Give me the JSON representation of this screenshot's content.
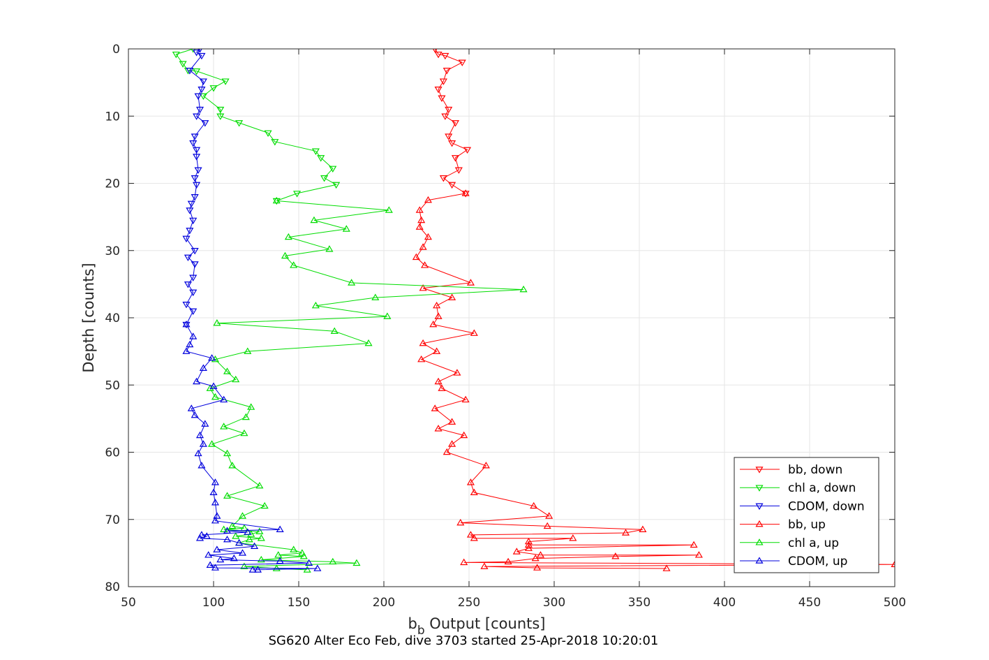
{
  "chart_data": {
    "type": "scatter",
    "title": "SG620 Alter Eco Feb, dive 3703 started 25-Apr-2018 10:20:01",
    "xlabel_main": "b",
    "xlabel_sub": "b",
    "xlabel_rest": " Output [counts]",
    "ylabel": "Depth [counts]",
    "xlim": [
      50,
      500
    ],
    "ylim": [
      0,
      80
    ],
    "y_reversed": true,
    "x_ticks": [
      "50",
      "100",
      "150",
      "200",
      "250",
      "300",
      "350",
      "400",
      "450",
      "500"
    ],
    "y_ticks": [
      "0",
      "10",
      "20",
      "30",
      "40",
      "50",
      "60",
      "70",
      "80"
    ],
    "grid": true,
    "legend_position": "bottom-right",
    "series": [
      {
        "name": "bb, down",
        "color": "#ff0000",
        "marker": "triangle-down",
        "points": [
          [
            230,
            0
          ],
          [
            232,
            0.8
          ],
          [
            236,
            1
          ],
          [
            246,
            2
          ],
          [
            237,
            3.2
          ],
          [
            235,
            4.8
          ],
          [
            232,
            6
          ],
          [
            234,
            7.3
          ],
          [
            238,
            9
          ],
          [
            236,
            10
          ],
          [
            242,
            11
          ],
          [
            238,
            13
          ],
          [
            240,
            14
          ],
          [
            249,
            15
          ],
          [
            242,
            16.2
          ],
          [
            244,
            18
          ],
          [
            235,
            19.2
          ],
          [
            240,
            20.2
          ],
          [
            248,
            21.5
          ]
        ]
      },
      {
        "name": "chl a, down",
        "color": "#00dd00",
        "marker": "triangle-down",
        "points": [
          [
            88,
            0
          ],
          [
            78,
            0.8
          ],
          [
            82,
            2.2
          ],
          [
            85,
            3.2
          ],
          [
            90,
            3.3
          ],
          [
            107,
            4.8
          ],
          [
            100,
            5.8
          ],
          [
            94,
            7
          ],
          [
            104,
            9
          ],
          [
            104,
            10
          ],
          [
            115,
            11
          ],
          [
            132,
            12.5
          ],
          [
            136,
            13.8
          ],
          [
            160,
            15.2
          ],
          [
            163,
            16.2
          ],
          [
            170,
            17.8
          ],
          [
            165,
            19.2
          ],
          [
            172,
            20.2
          ],
          [
            149,
            21.5
          ],
          [
            137,
            22.6
          ]
        ]
      },
      {
        "name": "CDOM, down",
        "color": "#0000dd",
        "marker": "triangle-down",
        "points": [
          [
            92,
            0
          ],
          [
            90,
            0.5
          ],
          [
            93,
            1
          ],
          [
            86,
            3.2
          ],
          [
            94,
            4.8
          ],
          [
            93,
            6
          ],
          [
            91,
            7
          ],
          [
            92,
            9
          ],
          [
            90,
            10
          ],
          [
            95,
            11
          ],
          [
            89,
            13
          ],
          [
            88,
            14
          ],
          [
            90,
            15
          ],
          [
            90,
            16
          ],
          [
            91,
            18
          ],
          [
            89,
            19.2
          ],
          [
            90,
            20.2
          ],
          [
            89,
            22
          ],
          [
            87,
            23
          ],
          [
            86,
            24
          ],
          [
            88,
            25.5
          ],
          [
            86,
            27
          ],
          [
            84,
            28.2
          ],
          [
            89,
            30
          ],
          [
            85,
            31
          ],
          [
            89,
            32
          ],
          [
            88,
            34
          ],
          [
            85,
            35
          ],
          [
            88,
            36.2
          ],
          [
            84,
            38
          ],
          [
            88,
            39
          ],
          [
            84,
            41
          ]
        ]
      },
      {
        "name": "bb, up",
        "color": "#ff0000",
        "marker": "triangle-up",
        "points": [
          [
            248,
            21.5
          ],
          [
            226,
            22.5
          ],
          [
            221,
            24
          ],
          [
            222,
            25.5
          ],
          [
            221,
            26.5
          ],
          [
            226,
            28
          ],
          [
            223,
            29.5
          ],
          [
            219,
            31
          ],
          [
            224,
            32.2
          ],
          [
            251,
            34.8
          ],
          [
            223,
            35.6
          ],
          [
            240,
            37
          ],
          [
            231,
            38.2
          ],
          [
            232,
            39.8
          ],
          [
            229,
            41
          ],
          [
            253,
            42.3
          ],
          [
            223,
            43.8
          ],
          [
            231,
            45
          ],
          [
            222,
            46.2
          ],
          [
            243,
            48.2
          ],
          [
            232,
            49.5
          ],
          [
            234,
            50.5
          ],
          [
            248,
            52.2
          ],
          [
            230,
            53.5
          ],
          [
            240,
            55.5
          ],
          [
            232,
            56.5
          ],
          [
            247,
            57.5
          ],
          [
            240,
            58.8
          ],
          [
            237,
            60
          ],
          [
            260,
            62
          ],
          [
            251,
            64.5
          ],
          [
            253,
            66
          ],
          [
            288,
            68
          ],
          [
            297,
            69.5
          ],
          [
            245,
            70.5
          ],
          [
            296,
            71
          ],
          [
            352,
            71.5
          ],
          [
            342,
            72
          ],
          [
            251,
            72.3
          ],
          [
            253,
            72.8
          ],
          [
            311,
            72.8
          ],
          [
            285,
            73.3
          ],
          [
            285,
            73.8
          ],
          [
            382,
            73.8
          ],
          [
            285,
            74.3
          ],
          [
            278,
            74.8
          ],
          [
            292,
            75.3
          ],
          [
            385,
            75.3
          ],
          [
            336,
            75.5
          ],
          [
            289,
            75.8
          ],
          [
            273,
            76.3
          ],
          [
            247,
            76.4
          ],
          [
            500,
            76.7
          ],
          [
            259,
            77
          ],
          [
            290,
            77.2
          ],
          [
            366,
            77.3
          ]
        ]
      },
      {
        "name": "chl a, up",
        "color": "#00dd00",
        "marker": "triangle-up",
        "points": [
          [
            137,
            22.6
          ],
          [
            203,
            24
          ],
          [
            159,
            25.5
          ],
          [
            178,
            26.8
          ],
          [
            144,
            28
          ],
          [
            168,
            29.8
          ],
          [
            142,
            30.8
          ],
          [
            147,
            32.2
          ],
          [
            181,
            34.8
          ],
          [
            282,
            35.8
          ],
          [
            195,
            37
          ],
          [
            160,
            38.2
          ],
          [
            202,
            39.8
          ],
          [
            102,
            40.8
          ],
          [
            171,
            42
          ],
          [
            191,
            43.8
          ],
          [
            120,
            45
          ],
          [
            101,
            46.2
          ],
          [
            108,
            48
          ],
          [
            113,
            49.2
          ],
          [
            98,
            50.5
          ],
          [
            101,
            51.8
          ],
          [
            122,
            53.3
          ],
          [
            119,
            54.8
          ],
          [
            106,
            56.2
          ],
          [
            118,
            57.2
          ],
          [
            99,
            58.8
          ],
          [
            108,
            60.2
          ],
          [
            111,
            62
          ],
          [
            127,
            65
          ],
          [
            108,
            66.5
          ],
          [
            130,
            68
          ],
          [
            117,
            69.5
          ],
          [
            111,
            71
          ],
          [
            118,
            71.3
          ],
          [
            106,
            71.5
          ],
          [
            127,
            71.8
          ],
          [
            122,
            72.2
          ],
          [
            113,
            72.5
          ],
          [
            128,
            72.8
          ],
          [
            121,
            73
          ],
          [
            115,
            73.5
          ],
          [
            147,
            74.5
          ],
          [
            152,
            75
          ],
          [
            138,
            75.3
          ],
          [
            153,
            75.5
          ],
          [
            128,
            76
          ],
          [
            170,
            76.3
          ],
          [
            184,
            76.5
          ],
          [
            118,
            77
          ],
          [
            137,
            77.3
          ],
          [
            155,
            77.5
          ]
        ]
      },
      {
        "name": "CDOM, up",
        "color": "#0000dd",
        "marker": "triangle-up",
        "points": [
          [
            84,
            41
          ],
          [
            88,
            42.8
          ],
          [
            86,
            44
          ],
          [
            84,
            45
          ],
          [
            99,
            46
          ],
          [
            94,
            47.5
          ],
          [
            90,
            49.5
          ],
          [
            100,
            50.2
          ],
          [
            106,
            52.2
          ],
          [
            87,
            53.5
          ],
          [
            89,
            54.5
          ],
          [
            95,
            55.8
          ],
          [
            92,
            57.5
          ],
          [
            94,
            58.8
          ],
          [
            91,
            60.2
          ],
          [
            93,
            62
          ],
          [
            101,
            64.5
          ],
          [
            100,
            66
          ],
          [
            101,
            67.5
          ],
          [
            102,
            69.5
          ],
          [
            101,
            70.2
          ],
          [
            139,
            71.5
          ],
          [
            108,
            71.7
          ],
          [
            120,
            71.9
          ],
          [
            93,
            72.3
          ],
          [
            96,
            72.5
          ],
          [
            92,
            72.8
          ],
          [
            108,
            73
          ],
          [
            115,
            73.5
          ],
          [
            124,
            74
          ],
          [
            102,
            74.5
          ],
          [
            117,
            75
          ],
          [
            97,
            75.3
          ],
          [
            112,
            75.8
          ],
          [
            104,
            76
          ],
          [
            139,
            76.2
          ],
          [
            156,
            76.5
          ],
          [
            98,
            76.8
          ],
          [
            101,
            77.2
          ],
          [
            161,
            77.3
          ],
          [
            123,
            77.5
          ],
          [
            126,
            77.5
          ]
        ]
      }
    ]
  }
}
